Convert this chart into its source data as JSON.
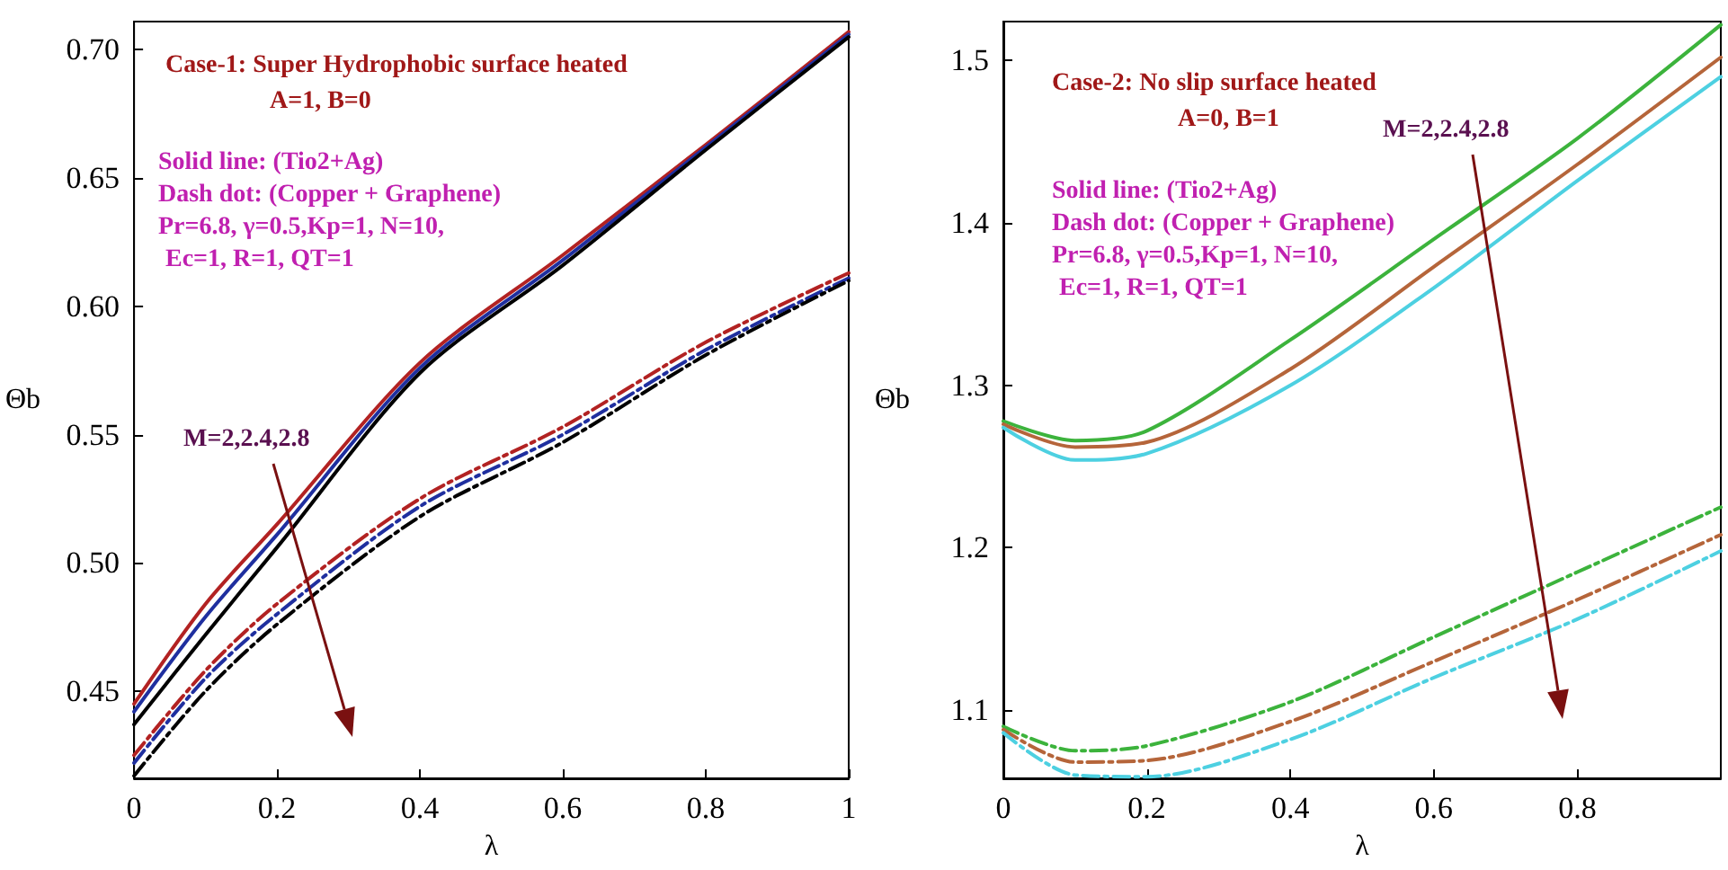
{
  "chart_data": [
    {
      "type": "line",
      "xlabel": "λ",
      "ylabel": "Θb",
      "xlim": [
        0,
        1
      ],
      "ylim": [
        0.416,
        0.711
      ],
      "xticks": [
        0,
        0.2,
        0.4,
        0.6,
        0.8,
        1
      ],
      "yticks": [
        0.45,
        {
          "value": 0.5,
          "label": "0.50"
        },
        0.55,
        {
          "value": 0.6,
          "label": "0.60"
        },
        0.65,
        {
          "value": 0.7,
          "label": "0.70"
        }
      ],
      "grid": false,
      "marker": "none",
      "x": [
        0,
        0.1,
        0.2,
        0.4,
        0.6,
        0.8,
        1
      ],
      "series": [
        {
          "color": "#b22222",
          "line_style": "solid",
          "values": [
            0.445,
            0.484,
            0.515,
            0.578,
            0.62,
            0.663,
            0.707
          ]
        },
        {
          "color": "#1f2f9f",
          "line_style": "solid",
          "values": [
            0.442,
            0.479,
            0.511,
            0.576,
            0.618,
            0.662,
            0.706
          ]
        },
        {
          "color": "#000000",
          "line_style": "solid",
          "values": [
            0.437,
            0.472,
            0.506,
            0.574,
            0.616,
            0.661,
            0.705
          ]
        },
        {
          "color": "#b22222",
          "line_style": "dashed",
          "values": [
            0.425,
            0.458,
            0.484,
            0.525,
            0.553,
            0.586,
            0.613
          ]
        },
        {
          "color": "#1f2f9f",
          "line_style": "dashed",
          "values": [
            0.422,
            0.455,
            0.48,
            0.522,
            0.55,
            0.583,
            0.611
          ]
        },
        {
          "color": "#000000",
          "line_style": "dashed",
          "values": [
            0.417,
            0.45,
            0.476,
            0.518,
            0.547,
            0.581,
            0.61
          ]
        }
      ],
      "annotations": [
        "Case-1: Super Hydrophobic surface heated",
        "A=1, B=0",
        "Solid line: (Tio2+Ag)",
        "Dash dot: (Copper + Graphene)",
        "Pr=6.8, γ=0.5,Kp=1, N=10,",
        "Ec=1, R=1, QT=1",
        "M=2,2.4,2.8"
      ]
    },
    {
      "type": "line",
      "xlabel": "λ",
      "ylabel": "Θb",
      "xlim": [
        0,
        1
      ],
      "ylim": [
        1.058,
        1.524
      ],
      "xticks": [
        0,
        0.2,
        0.4,
        0.6,
        0.8
      ],
      "yticks": [
        1.1,
        1.2,
        1.3,
        1.4,
        1.5
      ],
      "grid": false,
      "marker": "none",
      "x": [
        0,
        0.1,
        0.2,
        0.4,
        0.6,
        0.8,
        1
      ],
      "series": [
        {
          "color": "#3cb33c",
          "line_style": "solid",
          "values": [
            1.278,
            1.266,
            1.272,
            1.328,
            1.39,
            1.452,
            1.522
          ]
        },
        {
          "color": "#b5653a",
          "line_style": "solid",
          "values": [
            1.276,
            1.262,
            1.265,
            1.31,
            1.373,
            1.436,
            1.502
          ]
        },
        {
          "color": "#4dd0e1",
          "line_style": "solid",
          "values": [
            1.274,
            1.254,
            1.258,
            1.3,
            1.36,
            1.426,
            1.49
          ]
        },
        {
          "color": "#3cb33c",
          "line_style": "dashed",
          "values": [
            1.09,
            1.075,
            1.078,
            1.105,
            1.145,
            1.185,
            1.225
          ]
        },
        {
          "color": "#b5653a",
          "line_style": "dashed",
          "values": [
            1.088,
            1.068,
            1.069,
            1.093,
            1.13,
            1.168,
            1.208
          ]
        },
        {
          "color": "#4dd0e1",
          "line_style": "dashed",
          "values": [
            1.086,
            1.06,
            1.059,
            1.082,
            1.12,
            1.156,
            1.198
          ]
        }
      ],
      "annotations": [
        "Case-2: No slip surface heated",
        "A=0, B=1",
        "Solid line: (Tio2+Ag)",
        "Dash dot: (Copper + Graphene)",
        "Pr=6.8, γ=0.5,Kp=1, N=10,",
        "Ec=1, R=1, QT=1",
        "M=2,2.4,2.8"
      ]
    }
  ]
}
